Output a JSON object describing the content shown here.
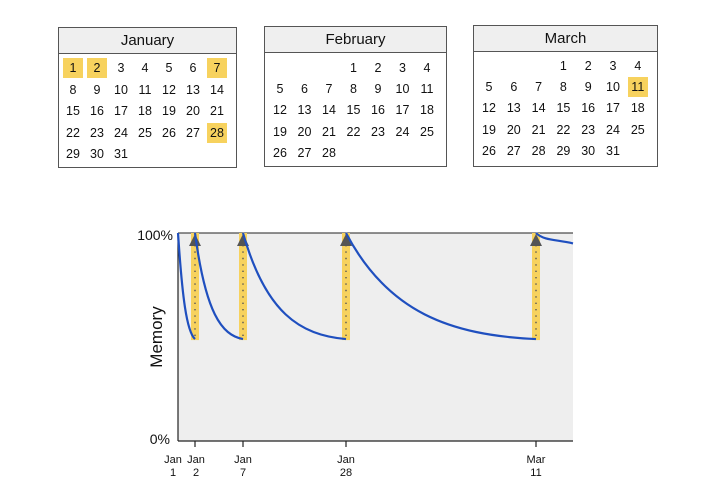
{
  "calendars": [
    {
      "month": "January",
      "start_weekday": 0,
      "days": 31,
      "highlighted": [
        1,
        2,
        7,
        28
      ]
    },
    {
      "month": "February",
      "start_weekday": 3,
      "days": 28,
      "highlighted": []
    },
    {
      "month": "March",
      "start_weekday": 3,
      "days": 31,
      "highlighted": [
        11
      ]
    }
  ],
  "chart_data": {
    "type": "line",
    "title": "",
    "xlabel": "",
    "ylabel": "Memory",
    "y_ticks": [
      "0%",
      "100%"
    ],
    "ylim": [
      0,
      100
    ],
    "x_ticks": [
      {
        "line1": "Jan",
        "line2": "1",
        "day": 1,
        "mark": false
      },
      {
        "line1": "Jan",
        "line2": "2",
        "day": 2,
        "mark": true
      },
      {
        "line1": "Jan",
        "line2": "7",
        "day": 7,
        "mark": true
      },
      {
        "line1": "Jan",
        "line2": "28",
        "day": 28,
        "mark": true
      },
      {
        "line1": "Mar",
        "line2": "11",
        "day": 70,
        "mark": true
      }
    ],
    "review_days": [
      2,
      7,
      28,
      70
    ],
    "memory_segments": [
      {
        "from_day": 1,
        "to_day": 2,
        "start": 100,
        "end": 49
      },
      {
        "from_day": 2,
        "to_day": 7,
        "start": 100,
        "end": 49
      },
      {
        "from_day": 7,
        "to_day": 28,
        "start": 100,
        "end": 49
      },
      {
        "from_day": 28,
        "to_day": 70,
        "start": 100,
        "end": 49
      },
      {
        "from_day": 70,
        "to_day": 75,
        "start": 100,
        "end": 95
      }
    ],
    "colors": {
      "curve": "#1f4fbf",
      "review_bar": "#f7d25e",
      "review_arrow": "#555555",
      "plot_bg": "#eeeeee",
      "highlight": "#f7d25e"
    }
  }
}
